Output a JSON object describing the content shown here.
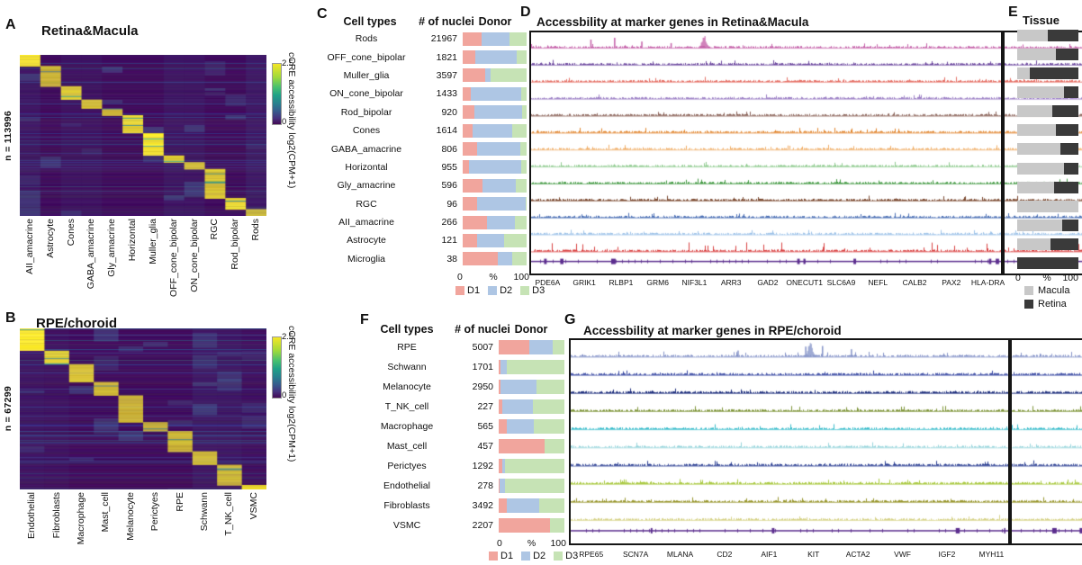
{
  "panels": {
    "A": {
      "label": "A",
      "title": "Retina&Macula",
      "n_label": "n = 113996",
      "colorbar": {
        "label": "cCRE accessibility log2(CPM+1)",
        "tick_max": "2.5",
        "tick_min": "0"
      }
    },
    "B": {
      "label": "B",
      "title": "RPE/choroid",
      "n_label": "n = 67299",
      "colorbar": {
        "label": "cCRE accessibility log2(CPM+1)",
        "tick_max": "2.5",
        "tick_min": "0"
      }
    },
    "C": {
      "label": "C",
      "headers": {
        "cell_types": "Cell types",
        "nuclei": "#  of  nuclei",
        "donor": "Donor"
      },
      "axis": {
        "min": "0",
        "mid": "%",
        "max": "100"
      },
      "legend": [
        {
          "label": "D1",
          "color": "#F1A59D"
        },
        {
          "label": "D2",
          "color": "#AEC6E4"
        },
        {
          "label": "D3",
          "color": "#C6E3B5"
        }
      ]
    },
    "D": {
      "label": "D",
      "title": "Accessbility at marker genes in Retina&Macula"
    },
    "E": {
      "label": "E",
      "title": "Tissue",
      "axis": {
        "min": "0",
        "mid": "%",
        "max": "100"
      },
      "legend": [
        {
          "label": "Macula",
          "color": "#C8C8C8"
        },
        {
          "label": "Retina",
          "color": "#3A3A3A"
        }
      ]
    },
    "F": {
      "label": "F",
      "headers": {
        "cell_types": "Cell types",
        "nuclei": "#  of  nuclei",
        "donor": "Donor"
      },
      "axis": {
        "min": "0",
        "mid": "%",
        "max": "100"
      },
      "legend": [
        {
          "label": "D1",
          "color": "#F1A59D"
        },
        {
          "label": "D2",
          "color": "#AEC6E4"
        },
        {
          "label": "D3",
          "color": "#C6E3B5"
        }
      ]
    },
    "G": {
      "label": "G",
      "title": "Accessbility at marker genes in RPE/choroid"
    }
  },
  "chart_data": [
    {
      "panel": "A",
      "type": "heatmap",
      "title": "Retina&Macula",
      "n_label": "n = 113996",
      "x_categories": [
        "AII_amacrine",
        "Astrocyte",
        "Cones",
        "GABA_amacrine",
        "Gly_amacrine",
        "Horizontal",
        "Muller_glia",
        "OFF_cone_bipolar",
        "ON_cone_bipolar",
        "RGC",
        "Rod_bipolar",
        "Rods"
      ],
      "block_weights": [
        5,
        9,
        6,
        4,
        3,
        8,
        10,
        3,
        3,
        13,
        5,
        3
      ],
      "colorbar_label": "cCRE accessibility log2(CPM+1)",
      "vmin": 0,
      "vmax": 2.5,
      "palette": "viridis",
      "description": "cCRE-by-cell-type accessibility heatmap; bright diagonal blocks mark cell-type-specific accessible elements"
    },
    {
      "panel": "B",
      "type": "heatmap",
      "title": "RPE/choroid",
      "n_label": "n = 67299",
      "x_categories": [
        "Endothelial",
        "Fibroblasts",
        "Macrophage",
        "Mast_cell",
        "Melanocyte",
        "Perictyes",
        "RPE",
        "Schwann",
        "T_NK_cell",
        "VSMC"
      ],
      "block_weights": [
        10,
        6,
        8,
        6,
        12,
        4,
        9,
        6,
        9,
        2
      ],
      "colorbar_label": "cCRE accessibility log2(CPM+1)",
      "vmin": 0,
      "vmax": 2.5,
      "palette": "viridis"
    },
    {
      "panel": "C",
      "type": "bar",
      "subtype": "stacked-horizontal",
      "xlim": [
        0,
        100
      ],
      "xlabel": "%",
      "categories": [
        "Rods",
        "OFF_cone_bipolar",
        "Muller_glia",
        "ON_cone_bipolar",
        "Rod_bipolar",
        "Cones",
        "GABA_amacrine",
        "Horizontal",
        "Gly_amacrine",
        "RGC",
        "AII_amacrine",
        "Astrocyte",
        "Microglia"
      ],
      "nuclei": [
        21967,
        1821,
        3597,
        1433,
        920,
        1614,
        806,
        955,
        596,
        96,
        266,
        121,
        38
      ],
      "series": [
        {
          "name": "D1",
          "color": "#F1A59D",
          "values": [
            30,
            20,
            35,
            13,
            18,
            15,
            22,
            10,
            31,
            22,
            38,
            22,
            55
          ]
        },
        {
          "name": "D2",
          "color": "#AEC6E4",
          "values": [
            43,
            65,
            8,
            79,
            75,
            62,
            68,
            82,
            52,
            76,
            44,
            43,
            23
          ]
        },
        {
          "name": "D3",
          "color": "#C6E3B5",
          "values": [
            27,
            15,
            57,
            8,
            7,
            23,
            10,
            8,
            17,
            2,
            18,
            35,
            22
          ]
        }
      ]
    },
    {
      "panel": "D",
      "type": "area",
      "subtype": "genome-tracks",
      "title": "Accessbility at marker genes in Retina&Macula",
      "genes": [
        "PDE6A",
        "GRIK1",
        "RLBP1",
        "GRM6",
        "NIF3L1",
        "ARR3",
        "GAD2",
        "ONECUT1",
        "SLC6A9",
        "NEFL",
        "CALB2",
        "PAX2",
        "HLA-DRA"
      ],
      "tracks": [
        {
          "name": "Rods",
          "color": "#C45FA8",
          "marker_gene": "PDE6A"
        },
        {
          "name": "OFF_cone_bipolar",
          "color": "#6F4BA0",
          "marker_gene": "GRIK1"
        },
        {
          "name": "Muller_glia",
          "color": "#E57066",
          "marker_gene": "RLBP1"
        },
        {
          "name": "ON_cone_bipolar",
          "color": "#9C7FC6",
          "marker_gene": "GRM6"
        },
        {
          "name": "Rod_bipolar",
          "color": "#8A6157",
          "marker_gene": "NIF3L1"
        },
        {
          "name": "Cones",
          "color": "#E0832A",
          "marker_gene": "ARR3"
        },
        {
          "name": "GABA_amacrine",
          "color": "#F0AD66",
          "marker_gene": "GAD2"
        },
        {
          "name": "Horizontal",
          "color": "#8FCB8F",
          "marker_gene": "ONECUT1"
        },
        {
          "name": "Gly_amacrine",
          "color": "#449A44",
          "marker_gene": "SLC6A9"
        },
        {
          "name": "RGC",
          "color": "#7B4930",
          "marker_gene": "NEFL"
        },
        {
          "name": "AII_amacrine",
          "color": "#4A6FB5",
          "marker_gene": "CALB2"
        },
        {
          "name": "Astrocyte",
          "color": "#9EC3E8",
          "marker_gene": "PAX2"
        },
        {
          "name": "Microglia",
          "color": "#D84040",
          "marker_gene": "HLA-DRA"
        }
      ],
      "gene_model_color": "#5B2D8E"
    },
    {
      "panel": "E",
      "type": "bar",
      "subtype": "stacked-horizontal",
      "title": "Tissue",
      "xlim": [
        0,
        100
      ],
      "xlabel": "%",
      "categories": [
        "Rods",
        "OFF_cone_bipolar",
        "Muller_glia",
        "ON_cone_bipolar",
        "Rod_bipolar",
        "Cones",
        "GABA_amacrine",
        "Horizontal",
        "Gly_amacrine",
        "RGC",
        "AII_amacrine",
        "Astrocyte",
        "Microglia"
      ],
      "series": [
        {
          "name": "Macula",
          "color": "#C8C8C8",
          "values": [
            50,
            63,
            20,
            77,
            58,
            63,
            71,
            77,
            61,
            100,
            74,
            55,
            0
          ]
        },
        {
          "name": "Retina",
          "color": "#3A3A3A",
          "values": [
            50,
            37,
            80,
            23,
            42,
            37,
            29,
            23,
            39,
            0,
            26,
            45,
            100
          ]
        }
      ]
    },
    {
      "panel": "F",
      "type": "bar",
      "subtype": "stacked-horizontal",
      "xlim": [
        0,
        100
      ],
      "xlabel": "%",
      "categories": [
        "RPE",
        "Schwann",
        "Melanocyte",
        "T_NK_cell",
        "Macrophage",
        "Mast_cell",
        "Perictyes",
        "Endothelial",
        "Fibroblasts",
        "VSMC"
      ],
      "nuclei": [
        5007,
        1701,
        2950,
        227,
        565,
        457,
        1292,
        278,
        3492,
        2207
      ],
      "series": [
        {
          "name": "D1",
          "color": "#F1A59D",
          "values": [
            47,
            3,
            3,
            6,
            12,
            70,
            5,
            2,
            12,
            78
          ]
        },
        {
          "name": "D2",
          "color": "#AEC6E4",
          "values": [
            35,
            9,
            54,
            46,
            42,
            0,
            4,
            7,
            50,
            0
          ]
        },
        {
          "name": "D3",
          "color": "#C6E3B5",
          "values": [
            18,
            88,
            43,
            48,
            46,
            30,
            91,
            91,
            38,
            22
          ]
        }
      ]
    },
    {
      "panel": "G",
      "type": "area",
      "subtype": "genome-tracks",
      "title": "Accessbility at marker genes in RPE/choroid",
      "genes": [
        "RPE65",
        "SCN7A",
        "MLANA",
        "CD2",
        "AIF1",
        "KIT",
        "ACTA2",
        "VWF",
        "IGF2",
        "MYH11"
      ],
      "tracks": [
        {
          "name": "RPE",
          "color": "#8593C8",
          "marker_gene": "RPE65"
        },
        {
          "name": "Schwann",
          "color": "#3949A3",
          "marker_gene": "SCN7A"
        },
        {
          "name": "Melanocyte",
          "color": "#20307E",
          "marker_gene": "MLANA"
        },
        {
          "name": "T_NK_cell",
          "color": "#7E9438",
          "marker_gene": "CD2"
        },
        {
          "name": "Macrophage",
          "color": "#38BCCB",
          "marker_gene": "AIF1"
        },
        {
          "name": "Mast_cell",
          "color": "#97D5DC",
          "marker_gene": "KIT"
        },
        {
          "name": "Perictyes",
          "color": "#2B3F93",
          "marker_gene": "ACTA2"
        },
        {
          "name": "Endothelial",
          "color": "#A9C93F",
          "marker_gene": "VWF"
        },
        {
          "name": "Fibroblasts",
          "color": "#99972F",
          "marker_gene": "IGF2"
        },
        {
          "name": "VSMC",
          "color": "#D6D288",
          "marker_gene": "MYH11"
        }
      ],
      "gene_model_color": "#5B2D8E"
    }
  ]
}
